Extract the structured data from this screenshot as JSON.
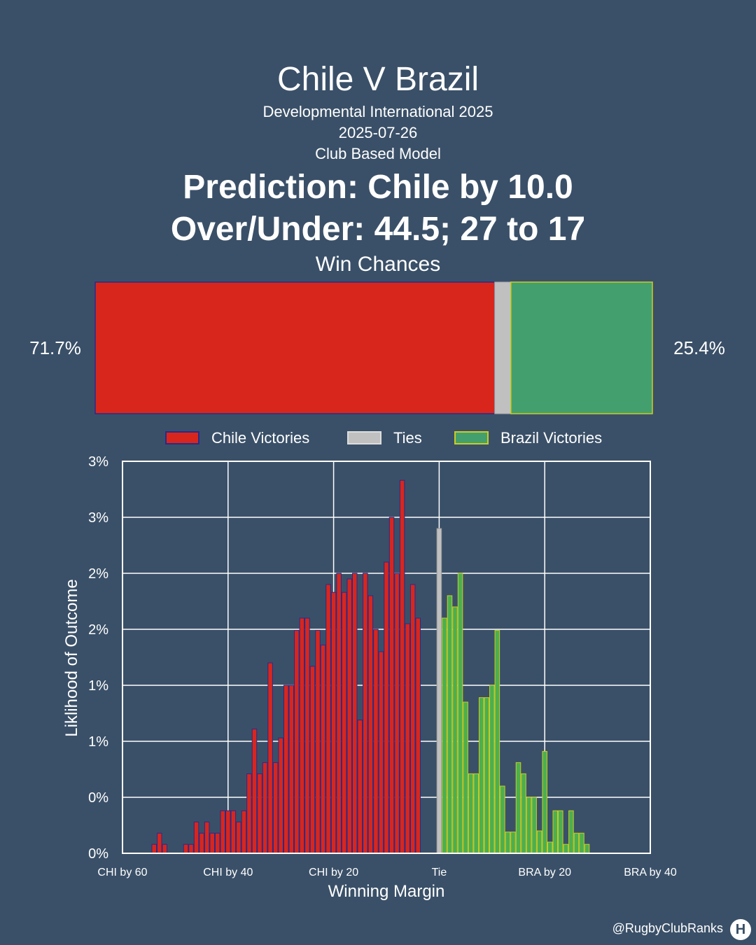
{
  "header": {
    "title": "Chile V Brazil",
    "subtitle": "Developmental International 2025",
    "date": "2025-07-26",
    "model": "Club Based Model",
    "prediction": "Prediction: Chile by 10.0",
    "over_under": "Over/Under: 44.5; 27 to 17"
  },
  "win_chances": {
    "title": "Win Chances",
    "chile_pct": 71.7,
    "tie_pct": 2.9,
    "brazil_pct": 25.4,
    "chile_label": "71.7%",
    "brazil_label": "25.4%"
  },
  "legend": {
    "chile": "Chile Victories",
    "ties": "Ties",
    "brazil": "Brazil Victories"
  },
  "colors": {
    "background": "#3a5068",
    "chile_fill": "#d9261c",
    "chile_edge": "#2a2a8a",
    "tie_fill": "#c0c0c0",
    "brazil_fill": "#43a06e",
    "brazil_edge": "#cccc22",
    "hist_brazil_fill": "#4caf50"
  },
  "chart_data": {
    "type": "bar",
    "title": "",
    "xlabel": "Winning Margin",
    "ylabel": "Liklihood of Outcome",
    "xlim": [
      -60,
      40
    ],
    "ylim": [
      0,
      3.5
    ],
    "x_ticks": [
      -60,
      -40,
      -20,
      0,
      20,
      40
    ],
    "x_tick_labels": [
      "CHI by 60",
      "CHI by 40",
      "CHI by 20",
      "Tie",
      "BRA by 20",
      "BRA by 40"
    ],
    "y_ticks": [
      0,
      0.5,
      1,
      1.5,
      2,
      2.5,
      3,
      3.5
    ],
    "y_tick_labels": [
      "0%",
      "0%",
      "1%",
      "1%",
      "2%",
      "2%",
      "3%",
      "3%"
    ],
    "grid": true,
    "series": [
      {
        "name": "Chile Victories",
        "x": [
          -54,
          -53,
          -52,
          -51,
          -50,
          -49,
          -48,
          -47,
          -46,
          -45,
          -44,
          -43,
          -42,
          -41,
          -40,
          -39,
          -38,
          -37,
          -36,
          -35,
          -34,
          -33,
          -32,
          -31,
          -30,
          -29,
          -28,
          -27,
          -26,
          -25,
          -24,
          -23,
          -22,
          -21,
          -20,
          -19,
          -18,
          -17,
          -16,
          -15,
          -14,
          -13,
          -12,
          -11,
          -10,
          -9,
          -8,
          -7,
          -6,
          -5,
          -4,
          -3,
          -2,
          -1
        ],
        "values": [
          0.08,
          0.18,
          0.08,
          0,
          0,
          0,
          0.08,
          0.08,
          0.28,
          0.18,
          0.28,
          0.18,
          0.18,
          0.38,
          0.38,
          0.38,
          0.28,
          0.38,
          0.71,
          1.11,
          0.71,
          0.81,
          1.7,
          0.81,
          1.03,
          1.5,
          1.5,
          1.99,
          2.1,
          2.1,
          1.67,
          1.99,
          1.86,
          2.4,
          2.33,
          2.5,
          2.33,
          2.45,
          2.5,
          1.19,
          2.5,
          2.3,
          2.0,
          1.8,
          2.6,
          3.0,
          2.5,
          3.33,
          2.05,
          2.4,
          2.1,
          0,
          0,
          0
        ]
      },
      {
        "name": "Ties",
        "x": [
          0
        ],
        "values": [
          2.9
        ]
      },
      {
        "name": "Brazil Victories",
        "x": [
          1,
          2,
          3,
          4,
          5,
          6,
          7,
          8,
          9,
          10,
          11,
          12,
          13,
          14,
          15,
          16,
          17,
          18,
          19,
          20,
          21,
          22,
          23,
          24,
          25,
          26,
          27,
          28,
          29,
          30
        ],
        "values": [
          2.1,
          2.3,
          2.2,
          2.5,
          1.35,
          0.71,
          0.71,
          1.39,
          1.39,
          1.5,
          1.99,
          0.6,
          0.19,
          0.19,
          0.81,
          0.71,
          0.5,
          0.5,
          0.2,
          0.91,
          0.1,
          0.38,
          0.38,
          0.08,
          0.38,
          0.18,
          0.18,
          0.08,
          0,
          0
        ]
      }
    ]
  },
  "footer": {
    "handle": "@RugbyClubRanks",
    "logo_glyph": "H"
  }
}
